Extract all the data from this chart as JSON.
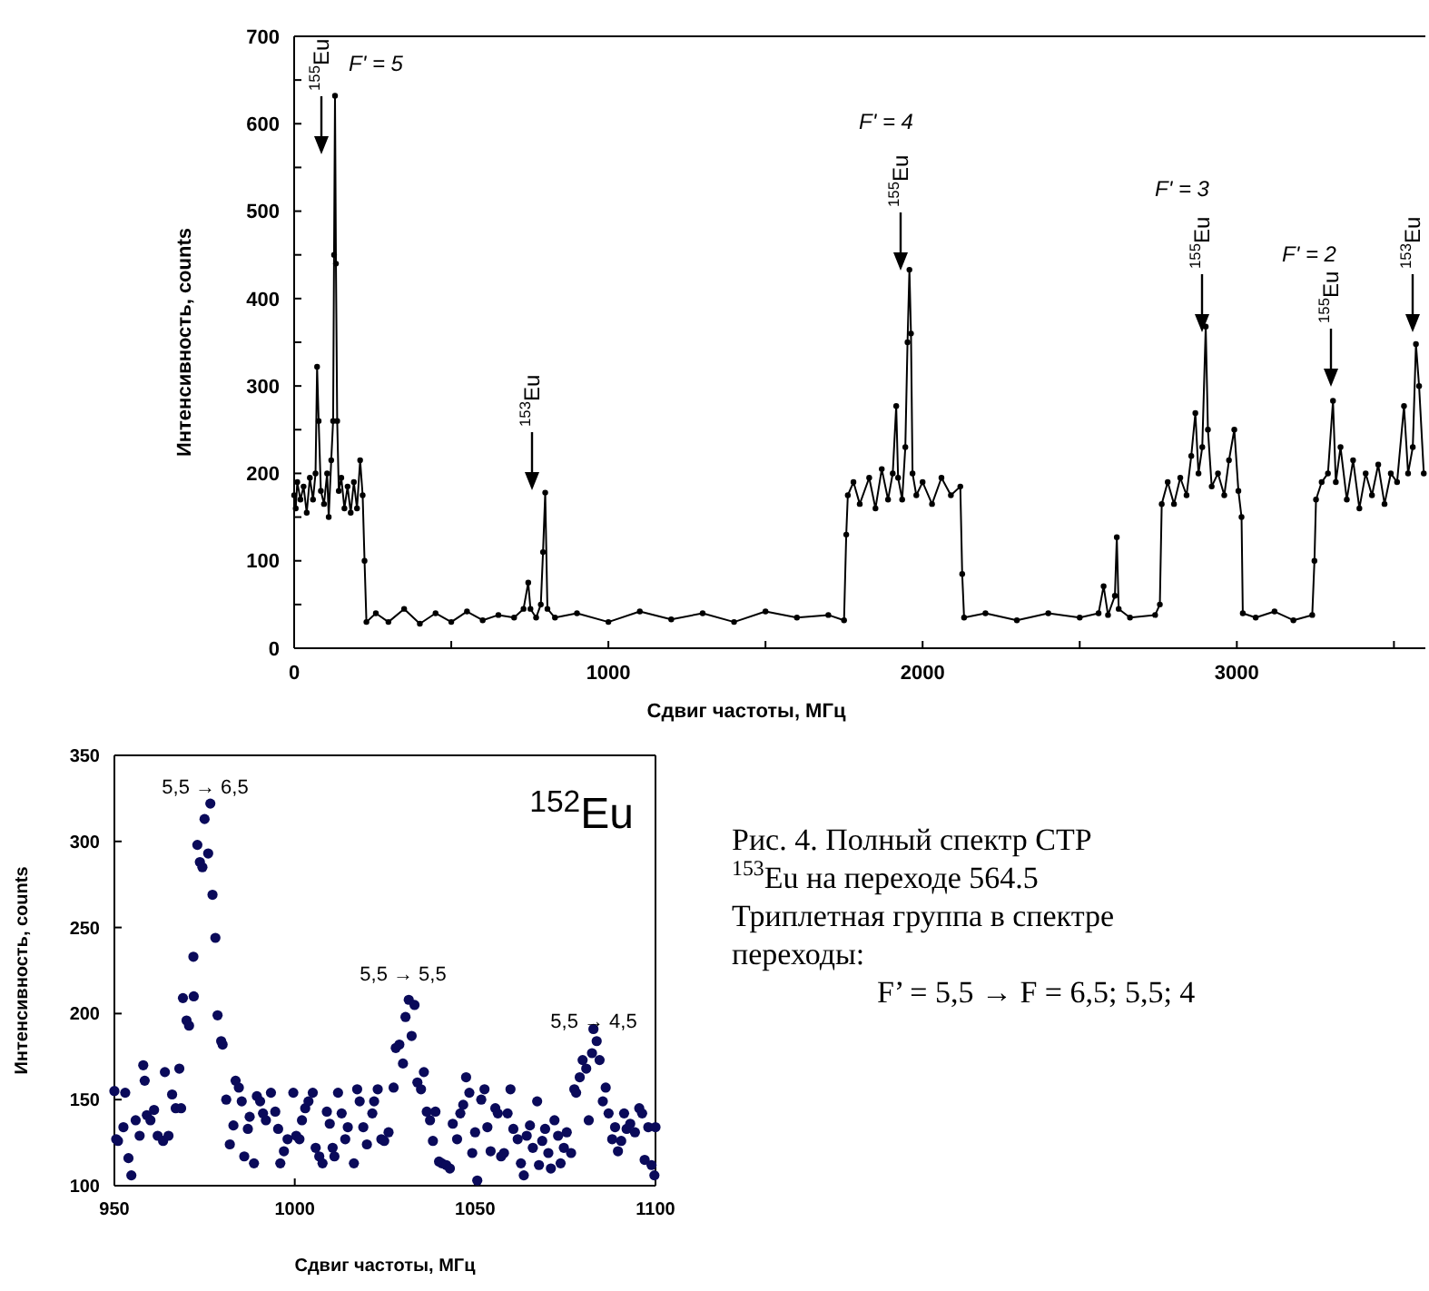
{
  "chart_data": [
    {
      "type": "line",
      "xlabel": "Сдвиг частоты, МГц",
      "ylabel": "Интенсивность, counts",
      "xlim": [
        0,
        3600
      ],
      "ylim": [
        0,
        700
      ],
      "xticks": [
        0,
        {
          "value": 500,
          "label": null
        },
        1000,
        {
          "value": 1500,
          "label": null
        },
        2000,
        {
          "value": 2500,
          "label": null
        },
        3000,
        {
          "value": 3500,
          "label": null
        }
      ],
      "yticks": [
        0,
        {
          "value": 50,
          "label": null
        },
        100,
        {
          "value": 150,
          "label": null
        },
        200,
        {
          "value": 250,
          "label": null
        },
        300,
        {
          "value": 350,
          "label": null
        },
        400,
        {
          "value": 450,
          "label": null
        },
        500,
        {
          "value": 550,
          "label": null
        },
        600,
        {
          "value": 650,
          "label": null
        },
        700
      ],
      "marker": "circle",
      "line_style": "solid",
      "series": [
        {
          "color": "#000000",
          "x": [
            0,
            5,
            10,
            20,
            30,
            40,
            50,
            60,
            68,
            73,
            78,
            85,
            95,
            105,
            110,
            118,
            124,
            127,
            130,
            133,
            137,
            142,
            150,
            160,
            170,
            180,
            190,
            200,
            210,
            218,
            224,
            230,
            260,
            300,
            350,
            400,
            450,
            500,
            550,
            600,
            650,
            700,
            730,
            745,
            752,
            770,
            785,
            792,
            799,
            806,
            830,
            900,
            1000,
            1100,
            1200,
            1300,
            1400,
            1500,
            1600,
            1700,
            1750,
            1757,
            1762,
            1780,
            1800,
            1830,
            1850,
            1870,
            1890,
            1905,
            1916,
            1922,
            1935,
            1945,
            1952,
            1958,
            1963,
            1968,
            1980,
            2000,
            2030,
            2060,
            2090,
            2120,
            2126,
            2132,
            2200,
            2300,
            2400,
            2500,
            2560,
            2576,
            2590,
            2612,
            2618,
            2624,
            2660,
            2740,
            2755,
            2761,
            2780,
            2800,
            2820,
            2840,
            2855,
            2868,
            2878,
            2890,
            2901,
            2908,
            2920,
            2940,
            2960,
            2975,
            2992,
            3005,
            3015,
            3019,
            3060,
            3120,
            3180,
            3240,
            3247,
            3252,
            3270,
            3290,
            3306,
            3315,
            3330,
            3350,
            3370,
            3390,
            3410,
            3430,
            3450,
            3470,
            3490,
            3510,
            3532,
            3545,
            3560,
            3570,
            3580,
            3595
          ],
          "values": [
            175,
            160,
            190,
            170,
            185,
            155,
            195,
            170,
            200,
            322,
            260,
            180,
            165,
            200,
            150,
            215,
            260,
            450,
            632,
            440,
            260,
            180,
            195,
            160,
            185,
            155,
            190,
            160,
            215,
            175,
            100,
            30,
            40,
            30,
            45,
            28,
            40,
            30,
            42,
            32,
            38,
            35,
            45,
            75,
            45,
            35,
            50,
            110,
            178,
            45,
            35,
            40,
            30,
            42,
            33,
            40,
            30,
            42,
            35,
            38,
            32,
            130,
            175,
            190,
            165,
            195,
            160,
            205,
            170,
            200,
            277,
            195,
            170,
            230,
            350,
            433,
            360,
            200,
            175,
            190,
            165,
            195,
            175,
            185,
            85,
            35,
            40,
            32,
            40,
            35,
            40,
            71,
            38,
            60,
            127,
            45,
            35,
            38,
            50,
            165,
            190,
            165,
            195,
            175,
            220,
            269,
            200,
            230,
            368,
            250,
            185,
            200,
            175,
            215,
            250,
            180,
            150,
            40,
            35,
            42,
            32,
            38,
            100,
            170,
            190,
            200,
            283,
            190,
            230,
            170,
            215,
            160,
            200,
            175,
            210,
            165,
            200,
            190,
            277,
            200,
            230,
            348,
            300,
            200
          ]
        }
      ],
      "annotations": [
        "$^{155}$Eu",
        "$^{153}$Eu",
        "$^{155}$Eu",
        "$^{155}$Eu",
        "$^{155}$Eu",
        "$^{153}$Eu",
        "F' = 5",
        "F' = 4",
        "F' = 3",
        "F' = 2",
        "Рис. 4. Полный спектр СТР",
        "$^{153}$Eu   на   переходе   564.5",
        "Триплетная  группа  в  спектре",
        "переходы:",
        "        F’ = 5,5 → F = 6,5; 5,5; 4"
      ]
    },
    {
      "type": "scatter",
      "xlabel": "Сдвиг частоты, МГц",
      "ylabel": "Интенсивность, counts",
      "xlim": [
        950,
        1100
      ],
      "ylim": [
        100,
        350
      ],
      "xticks": [
        950,
        1000,
        1050,
        1100
      ],
      "yticks": [
        100,
        150,
        200,
        250,
        300,
        350
      ],
      "marker": "circle",
      "series": [
        {
          "color": "#0a0a5a",
          "x": [
            950,
            950.5,
            951,
            952.5,
            953,
            953.9,
            954.7,
            955.9,
            957,
            958,
            958.4,
            959,
            960,
            961,
            962,
            963.5,
            964,
            965,
            966,
            967,
            968,
            968.5,
            969,
            970,
            970.7,
            971.9,
            972,
            973,
            973.7,
            974.4,
            975,
            976,
            976.6,
            977.2,
            978,
            978.6,
            979.6,
            980,
            981,
            982,
            983,
            983.6,
            984.5,
            985.3,
            986,
            987,
            987.5,
            988.7,
            989.5,
            990.4,
            991.2,
            992,
            993.4,
            994.6,
            995.4,
            996,
            997,
            998,
            999.6,
            1000.4,
            1001.3,
            1002,
            1002.9,
            1003.8,
            1005,
            1005.8,
            1006.8,
            1007.7,
            1008.9,
            1009.7,
            1010.5,
            1011,
            1012,
            1013,
            1014,
            1014.7,
            1016.4,
            1017.3,
            1018,
            1019,
            1020,
            1021.5,
            1022,
            1023,
            1024,
            1024.8,
            1026,
            1027.4,
            1028,
            1029,
            1030,
            1030.7,
            1031.6,
            1032.4,
            1033.2,
            1034,
            1035,
            1035.8,
            1036.6,
            1037.5,
            1038.3,
            1039,
            1040,
            1040.8,
            1042,
            1043,
            1043.8,
            1045,
            1045.9,
            1046.7,
            1047.5,
            1048.4,
            1049.2,
            1050,
            1050.6,
            1051.7,
            1052.6,
            1053.4,
            1054.3,
            1055.6,
            1056.3,
            1057.2,
            1058,
            1059,
            1059.8,
            1060.6,
            1061.8,
            1062.7,
            1063.5,
            1064.3,
            1065.2,
            1066,
            1067.2,
            1067.7,
            1068.6,
            1069.4,
            1070.3,
            1071,
            1072,
            1073,
            1073.7,
            1074.6,
            1075.4,
            1076.6,
            1077.5,
            1078,
            1079,
            1079.8,
            1080.8,
            1081.5,
            1082.4,
            1082.8,
            1083.7,
            1084.5,
            1085.4,
            1086.2,
            1087,
            1088,
            1088.8,
            1089.6,
            1090.5,
            1091.3,
            1092,
            1093,
            1094.3,
            1095.5,
            1096.3,
            1097,
            1098,
            1098.9,
            1099.7,
            1100
          ],
          "values": [
            155,
            127,
            126,
            134,
            154,
            116,
            106,
            138,
            129,
            170,
            161,
            141,
            138,
            144,
            129,
            126,
            166,
            129,
            153,
            145,
            168,
            145,
            209,
            196,
            193,
            233,
            210,
            298,
            288,
            285,
            313,
            293,
            322,
            269,
            244,
            199,
            184,
            182,
            150,
            124,
            135,
            161,
            157,
            149,
            117,
            133,
            140,
            113,
            152,
            149,
            142,
            138,
            154,
            143,
            133,
            113,
            120,
            127,
            154,
            129,
            127,
            138,
            145,
            149,
            154,
            122,
            117,
            113,
            143,
            136,
            122,
            117,
            154,
            142,
            127,
            134,
            113,
            156,
            149,
            134,
            124,
            142,
            149,
            156,
            127,
            126,
            131,
            157,
            180,
            182,
            171,
            198,
            208,
            187,
            205,
            160,
            156,
            166,
            143,
            138,
            126,
            143,
            114,
            113,
            112,
            110,
            136,
            127,
            142,
            147,
            163,
            154,
            119,
            131,
            103,
            150,
            156,
            134,
            120,
            145,
            142,
            117,
            119,
            142,
            156,
            133,
            127,
            113,
            106,
            129,
            135,
            122,
            149,
            112,
            126,
            133,
            119,
            110,
            138,
            129,
            113,
            122,
            131,
            119,
            156,
            154,
            163,
            173,
            168,
            138,
            177,
            191,
            184,
            173,
            149,
            157,
            142,
            127,
            134,
            120,
            126,
            142,
            133,
            136,
            131,
            145,
            142,
            115,
            134,
            112,
            106,
            134
          ]
        }
      ],
      "annotations": [
        "5,5 → 6,5",
        "5,5 → 5,5",
        "5,5 → 4,5",
        "$^{152}$Eu"
      ]
    }
  ]
}
